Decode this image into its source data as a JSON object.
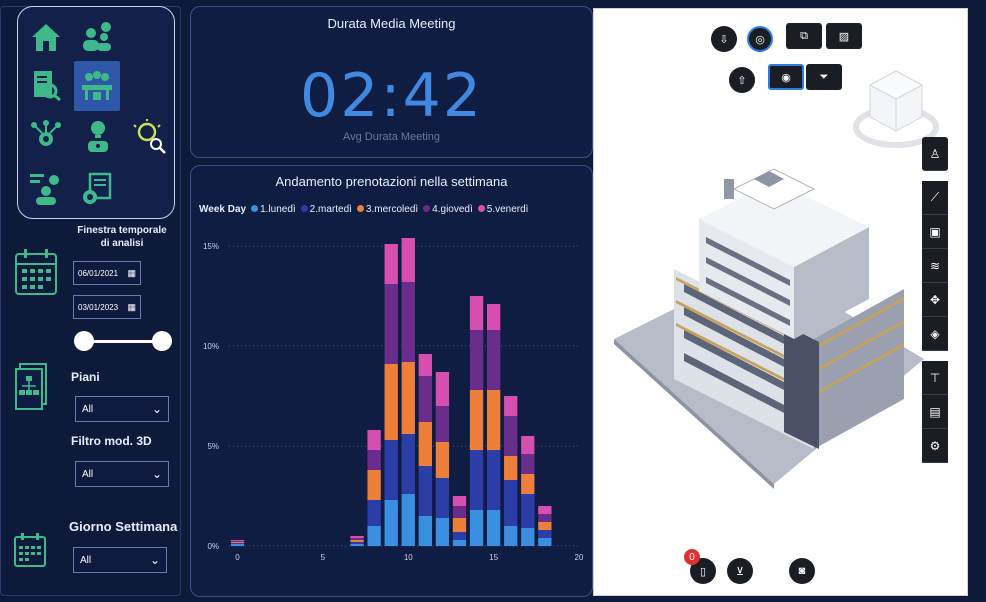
{
  "nav": {
    "icons": [
      {
        "name": "home-icon"
      },
      {
        "name": "users-location-icon"
      },
      {
        "name": "document-search-icon"
      },
      {
        "name": "meeting-icon",
        "active": true
      },
      {
        "name": "network-gear-icon"
      },
      {
        "name": "idea-person-icon"
      },
      {
        "name": "bulb-search-icon"
      },
      {
        "name": "person-chart-icon"
      },
      {
        "name": "settings-report-icon"
      }
    ]
  },
  "filters": {
    "time_window_label": "Finestra temporale di analisi",
    "date_from": "06/01/2021",
    "date_to": "03/01/2023",
    "floors_label": "Piani",
    "floors_value": "All",
    "model_filter_label": "Filtro mod. 3D",
    "model_filter_value": "All",
    "weekday_label": "Giorno Settimana",
    "weekday_value": "All"
  },
  "kpi": {
    "title": "Durata Media Meeting",
    "value": "02:42",
    "subtitle": "Avg Durata Meeting"
  },
  "colors": {
    "lunedi": "#3b8fe0",
    "martedi": "#2c3da8",
    "mercoledi": "#ee7f3a",
    "giovedi": "#6a2d8c",
    "venerdi": "#d64fb0",
    "accent": "#3f8ae0"
  },
  "chart_data": {
    "type": "bar",
    "title": "Andamento prenotazioni nella settimana",
    "legend_title": "Week Day",
    "legend_position": "top-left",
    "stacked": true,
    "xlabel": "",
    "ylabel": "",
    "x_ticks": [
      "0",
      "5",
      "10",
      "15",
      "20"
    ],
    "y_ticks": [
      "0%",
      "5%",
      "10%",
      "15%"
    ],
    "xlim": [
      -0.5,
      20
    ],
    "ylim": [
      0,
      16
    ],
    "grid": true,
    "x": [
      0,
      7,
      8,
      9,
      10,
      11,
      12,
      13,
      14,
      15,
      16,
      17,
      18
    ],
    "series": [
      {
        "name": "1.lunedì",
        "color": "#3b8fe0",
        "values": [
          0.1,
          0.1,
          1.0,
          2.3,
          2.6,
          1.5,
          1.4,
          0.3,
          1.8,
          1.8,
          1.0,
          0.9,
          0.4
        ]
      },
      {
        "name": "2.martedì",
        "color": "#2c3da8",
        "values": [
          0.05,
          0.1,
          1.3,
          3.0,
          3.0,
          2.5,
          2.0,
          0.4,
          3.0,
          3.0,
          2.3,
          1.7,
          0.4
        ]
      },
      {
        "name": "3.mercoledì",
        "color": "#ee7f3a",
        "values": [
          0.05,
          0.1,
          1.5,
          3.8,
          3.6,
          2.2,
          1.8,
          0.7,
          3.0,
          3.0,
          1.2,
          1.0,
          0.4
        ]
      },
      {
        "name": "4.giovedì",
        "color": "#6a2d8c",
        "values": [
          0.05,
          0.1,
          1.0,
          4.0,
          4.0,
          2.3,
          1.8,
          0.6,
          3.0,
          3.0,
          2.0,
          1.0,
          0.4
        ]
      },
      {
        "name": "5.venerdì",
        "color": "#d64fb0",
        "values": [
          0.05,
          0.1,
          1.0,
          2.0,
          2.2,
          1.1,
          1.7,
          0.5,
          1.7,
          1.3,
          1.0,
          0.9,
          0.4
        ]
      }
    ]
  },
  "viewer": {
    "badge_count": "0"
  }
}
